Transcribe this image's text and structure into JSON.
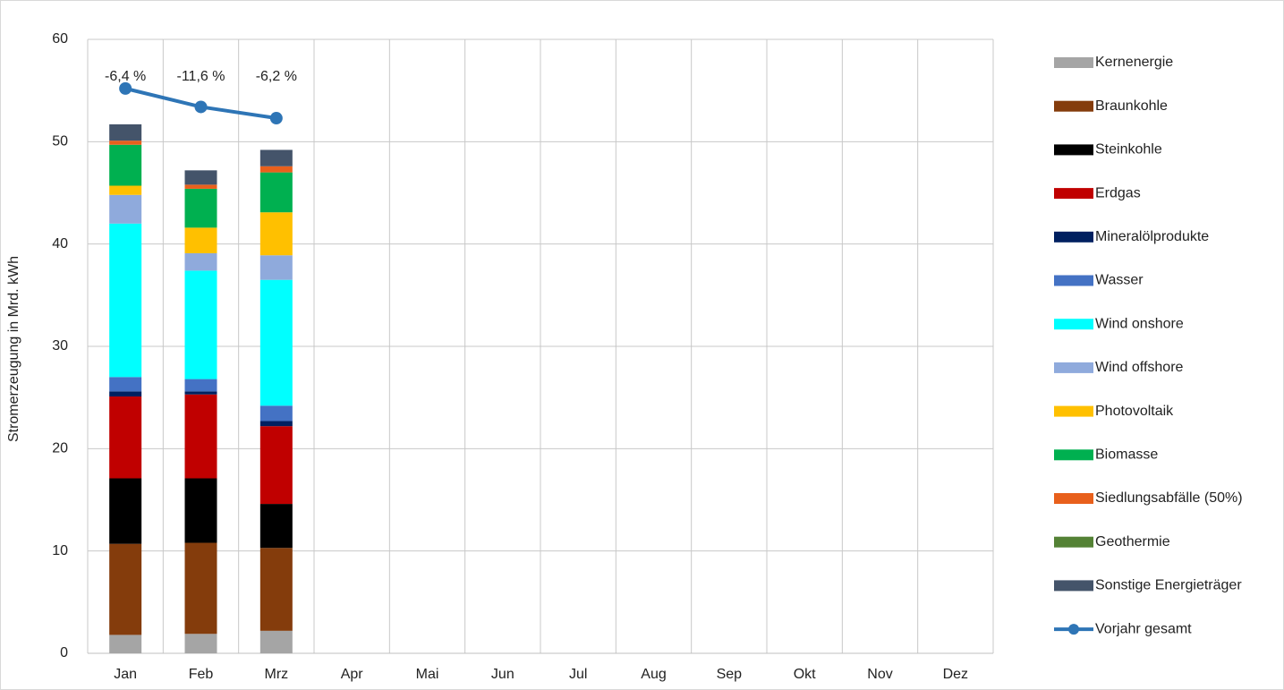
{
  "chart_data": {
    "type": "bar",
    "stacked": true,
    "y_label": "Stromerzeugung  in Mrd. kWh",
    "categories": [
      "Jan",
      "Feb",
      "Mrz",
      "Apr",
      "Mai",
      "Jun",
      "Jul",
      "Aug",
      "Sep",
      "Okt",
      "Nov",
      "Dez"
    ],
    "ylim": [
      0,
      60
    ],
    "yticks": [
      0,
      10,
      20,
      30,
      40,
      50,
      60
    ],
    "grid": true,
    "legend": "right",
    "series": [
      {
        "name": "Kernenergie",
        "color": "#a5a5a5",
        "values": [
          1.8,
          1.9,
          2.2,
          null,
          null,
          null,
          null,
          null,
          null,
          null,
          null,
          null
        ]
      },
      {
        "name": "Braunkohle",
        "color": "#843c0c",
        "values": [
          8.9,
          8.9,
          8.1,
          null,
          null,
          null,
          null,
          null,
          null,
          null,
          null,
          null
        ]
      },
      {
        "name": "Steinkohle",
        "color": "#000000",
        "values": [
          6.4,
          6.3,
          4.3,
          null,
          null,
          null,
          null,
          null,
          null,
          null,
          null,
          null
        ]
      },
      {
        "name": "Erdgas",
        "color": "#c00000",
        "values": [
          8.0,
          8.2,
          7.6,
          null,
          null,
          null,
          null,
          null,
          null,
          null,
          null,
          null
        ]
      },
      {
        "name": "Mineralölprodukte",
        "color": "#002060",
        "values": [
          0.5,
          0.3,
          0.5,
          null,
          null,
          null,
          null,
          null,
          null,
          null,
          null,
          null
        ]
      },
      {
        "name": "Wasser",
        "color": "#4472c4",
        "values": [
          1.4,
          1.2,
          1.5,
          null,
          null,
          null,
          null,
          null,
          null,
          null,
          null,
          null
        ]
      },
      {
        "name": "Wind onshore",
        "color": "#00ffff",
        "values": [
          15.0,
          10.6,
          12.3,
          null,
          null,
          null,
          null,
          null,
          null,
          null,
          null,
          null
        ]
      },
      {
        "name": "Wind offshore",
        "color": "#8faadc",
        "values": [
          2.8,
          1.7,
          2.4,
          null,
          null,
          null,
          null,
          null,
          null,
          null,
          null,
          null
        ]
      },
      {
        "name": "Photovoltaik",
        "color": "#ffc000",
        "values": [
          0.9,
          2.5,
          4.2,
          null,
          null,
          null,
          null,
          null,
          null,
          null,
          null,
          null
        ]
      },
      {
        "name": "Biomasse",
        "color": "#00b050",
        "values": [
          4.0,
          3.8,
          3.9,
          null,
          null,
          null,
          null,
          null,
          null,
          null,
          null,
          null
        ]
      },
      {
        "name": "Siedlungsabfälle (50%)",
        "color": "#e8601c",
        "values": [
          0.4,
          0.4,
          0.6,
          null,
          null,
          null,
          null,
          null,
          null,
          null,
          null,
          null
        ]
      },
      {
        "name": "Geothermie",
        "color": "#548235",
        "values": [
          0,
          0,
          0,
          null,
          null,
          null,
          null,
          null,
          null,
          null,
          null,
          null
        ]
      },
      {
        "name": "Sonstige Energieträger",
        "color": "#44546a",
        "values": [
          1.6,
          1.4,
          1.6,
          null,
          null,
          null,
          null,
          null,
          null,
          null,
          null,
          null
        ]
      },
      {
        "name": "Vorjahr gesamt",
        "type": "line",
        "color": "#2e75b6",
        "values": [
          55.2,
          53.4,
          52.3,
          null,
          null,
          null,
          null,
          null,
          null,
          null,
          null,
          null
        ]
      }
    ],
    "annotations": [
      "-6,4 %",
      "-11,6 %",
      "-6,2 %"
    ]
  }
}
